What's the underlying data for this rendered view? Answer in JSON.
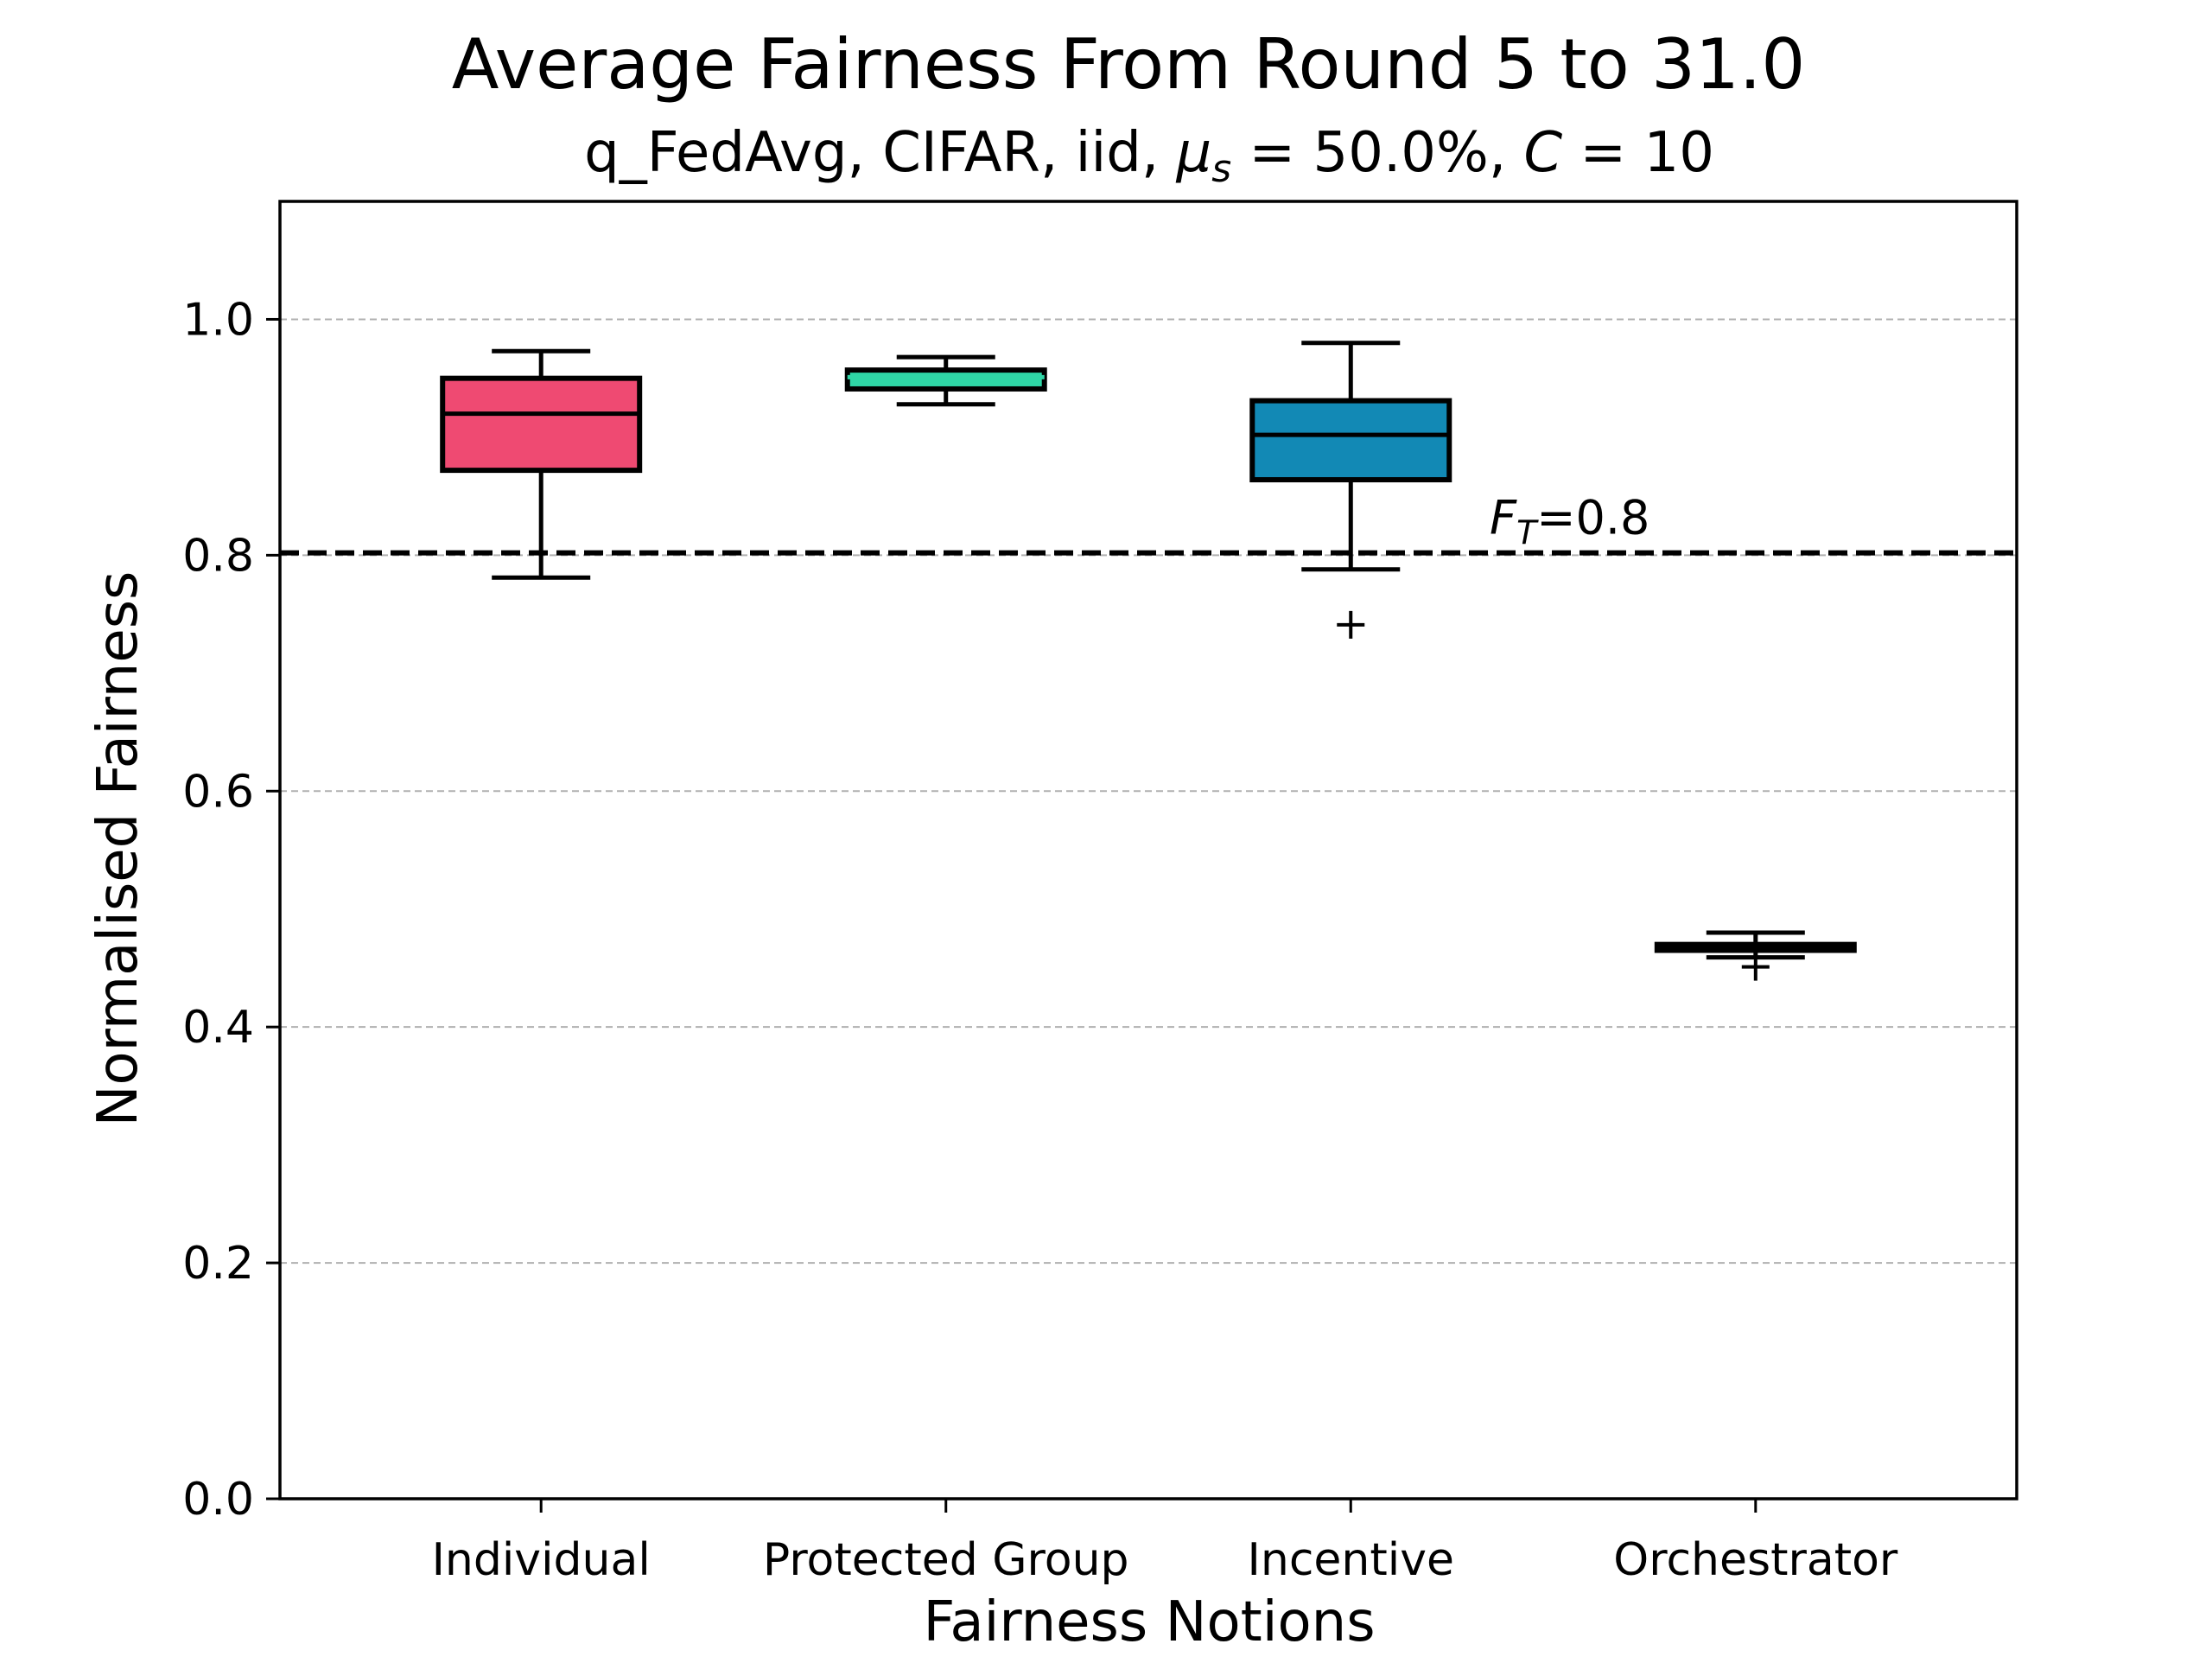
{
  "chart_data": {
    "type": "box",
    "title": "Average Fairness From Round 5 to 31.0",
    "subtitle": {
      "prefix": "q_FedAvg, CIFAR, iid, ",
      "mu_symbol": "μ",
      "mu_subscript": "s",
      "mu_value": " = 50.0%, ",
      "c_symbol": "C",
      "c_value": " = 10"
    },
    "xlabel": "Fairness Notions",
    "ylabel": "Normalised Fairness",
    "ylim": [
      0.0,
      1.1
    ],
    "yticks": [
      "0.0",
      "0.2",
      "0.4",
      "0.6",
      "0.8",
      "1.0"
    ],
    "grid": "y-dashed",
    "categories": [
      "Individual",
      "Protected Group",
      "Incentive",
      "Orchestrator"
    ],
    "boxes": [
      {
        "category": "Individual",
        "whisker_low": 0.781,
        "q1": 0.872,
        "median": 0.92,
        "q3": 0.95,
        "whisker_high": 0.973,
        "outliers": [],
        "color": "#EF4A72"
      },
      {
        "category": "Protected Group",
        "whisker_low": 0.928,
        "q1": 0.941,
        "median": 0.951,
        "q3": 0.957,
        "whisker_high": 0.968,
        "outliers": [],
        "color": "#2FD6A6"
      },
      {
        "category": "Incentive",
        "whisker_low": 0.788,
        "q1": 0.864,
        "median": 0.902,
        "q3": 0.931,
        "whisker_high": 0.98,
        "outliers": [
          0.741
        ],
        "color": "#1289B5"
      },
      {
        "category": "Orchestrator",
        "whisker_low": 0.459,
        "q1": 0.465,
        "median": 0.468,
        "q3": 0.47,
        "whisker_high": 0.48,
        "outliers": [
          0.451
        ],
        "color": "#000000"
      }
    ],
    "threshold": {
      "value": 0.802,
      "label_symbol": "F",
      "label_subscript": "T",
      "label_value": "=0.8"
    }
  }
}
